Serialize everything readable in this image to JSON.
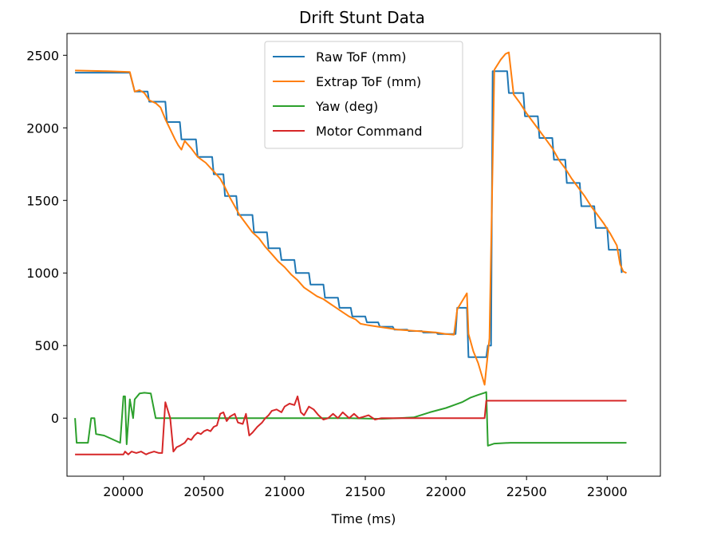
{
  "chart_data": {
    "type": "line",
    "title": "Drift Stunt Data",
    "xlabel": "Time (ms)",
    "ylabel": "",
    "xlim": [
      19650,
      23330
    ],
    "ylim": [
      -400,
      2650
    ],
    "xticks": [
      20000,
      20500,
      21000,
      21500,
      22000,
      22500,
      23000
    ],
    "xtick_labels": [
      "20000",
      "20500",
      "21000",
      "21500",
      "22000",
      "22500",
      "23000"
    ],
    "yticks": [
      0,
      500,
      1000,
      1500,
      2000,
      2500
    ],
    "ytick_labels": [
      "0",
      "500",
      "1000",
      "1500",
      "2000",
      "2500"
    ],
    "grid": false,
    "legend_position": "top-center",
    "series": [
      {
        "name": "Raw ToF (mm)",
        "color": "#1f77b4",
        "points": [
          [
            19700,
            2380
          ],
          [
            20040,
            2380
          ],
          [
            20070,
            2250
          ],
          [
            20150,
            2250
          ],
          [
            20160,
            2180
          ],
          [
            20260,
            2180
          ],
          [
            20270,
            2040
          ],
          [
            20350,
            2040
          ],
          [
            20360,
            1920
          ],
          [
            20450,
            1920
          ],
          [
            20460,
            1800
          ],
          [
            20550,
            1800
          ],
          [
            20560,
            1680
          ],
          [
            20620,
            1680
          ],
          [
            20630,
            1530
          ],
          [
            20700,
            1530
          ],
          [
            20710,
            1400
          ],
          [
            20800,
            1400
          ],
          [
            20810,
            1280
          ],
          [
            20890,
            1280
          ],
          [
            20900,
            1170
          ],
          [
            20970,
            1170
          ],
          [
            20980,
            1090
          ],
          [
            21060,
            1090
          ],
          [
            21070,
            1000
          ],
          [
            21150,
            1000
          ],
          [
            21160,
            920
          ],
          [
            21240,
            920
          ],
          [
            21250,
            830
          ],
          [
            21330,
            830
          ],
          [
            21340,
            760
          ],
          [
            21410,
            760
          ],
          [
            21420,
            700
          ],
          [
            21500,
            700
          ],
          [
            21510,
            660
          ],
          [
            21580,
            660
          ],
          [
            21590,
            630
          ],
          [
            21670,
            630
          ],
          [
            21680,
            610
          ],
          [
            21760,
            610
          ],
          [
            21770,
            600
          ],
          [
            21850,
            600
          ],
          [
            21860,
            590
          ],
          [
            21940,
            590
          ],
          [
            21950,
            580
          ],
          [
            22060,
            580
          ],
          [
            22070,
            760
          ],
          [
            22130,
            760
          ],
          [
            22140,
            420
          ],
          [
            22250,
            420
          ],
          [
            22260,
            500
          ],
          [
            22280,
            500
          ],
          [
            22290,
            2390
          ],
          [
            22380,
            2390
          ],
          [
            22390,
            2240
          ],
          [
            22480,
            2240
          ],
          [
            22490,
            2080
          ],
          [
            22570,
            2080
          ],
          [
            22580,
            1930
          ],
          [
            22660,
            1930
          ],
          [
            22670,
            1780
          ],
          [
            22740,
            1780
          ],
          [
            22750,
            1620
          ],
          [
            22830,
            1620
          ],
          [
            22840,
            1460
          ],
          [
            22920,
            1460
          ],
          [
            22930,
            1310
          ],
          [
            23000,
            1310
          ],
          [
            23010,
            1160
          ],
          [
            23080,
            1160
          ],
          [
            23090,
            1000
          ]
        ]
      },
      {
        "name": "Extrap ToF (mm)",
        "color": "#ff7f0e",
        "points": [
          [
            19700,
            2395
          ],
          [
            19900,
            2390
          ],
          [
            20040,
            2385
          ],
          [
            20070,
            2250
          ],
          [
            20100,
            2260
          ],
          [
            20130,
            2240
          ],
          [
            20160,
            2190
          ],
          [
            20200,
            2170
          ],
          [
            20230,
            2140
          ],
          [
            20260,
            2060
          ],
          [
            20290,
            1990
          ],
          [
            20320,
            1920
          ],
          [
            20340,
            1880
          ],
          [
            20360,
            1850
          ],
          [
            20380,
            1910
          ],
          [
            20420,
            1860
          ],
          [
            20460,
            1800
          ],
          [
            20510,
            1760
          ],
          [
            20560,
            1700
          ],
          [
            20600,
            1650
          ],
          [
            20630,
            1590
          ],
          [
            20660,
            1520
          ],
          [
            20690,
            1460
          ],
          [
            20720,
            1400
          ],
          [
            20760,
            1340
          ],
          [
            20800,
            1280
          ],
          [
            20840,
            1240
          ],
          [
            20880,
            1180
          ],
          [
            20920,
            1130
          ],
          [
            20960,
            1080
          ],
          [
            21000,
            1040
          ],
          [
            21040,
            990
          ],
          [
            21080,
            950
          ],
          [
            21120,
            900
          ],
          [
            21160,
            870
          ],
          [
            21200,
            840
          ],
          [
            21240,
            820
          ],
          [
            21280,
            790
          ],
          [
            21320,
            760
          ],
          [
            21360,
            730
          ],
          [
            21400,
            700
          ],
          [
            21440,
            680
          ],
          [
            21470,
            650
          ],
          [
            21520,
            640
          ],
          [
            21580,
            630
          ],
          [
            21640,
            620
          ],
          [
            21700,
            610
          ],
          [
            21760,
            605
          ],
          [
            21820,
            600
          ],
          [
            21880,
            595
          ],
          [
            21940,
            590
          ],
          [
            22000,
            580
          ],
          [
            22050,
            575
          ],
          [
            22070,
            750
          ],
          [
            22130,
            860
          ],
          [
            22140,
            580
          ],
          [
            22170,
            460
          ],
          [
            22200,
            380
          ],
          [
            22240,
            230
          ],
          [
            22270,
            550
          ],
          [
            22300,
            2400
          ],
          [
            22340,
            2470
          ],
          [
            22370,
            2510
          ],
          [
            22390,
            2520
          ],
          [
            22420,
            2230
          ],
          [
            22460,
            2170
          ],
          [
            22500,
            2100
          ],
          [
            22540,
            2040
          ],
          [
            22580,
            1980
          ],
          [
            22620,
            1920
          ],
          [
            22660,
            1860
          ],
          [
            22700,
            1780
          ],
          [
            22740,
            1720
          ],
          [
            22780,
            1650
          ],
          [
            22820,
            1590
          ],
          [
            22860,
            1530
          ],
          [
            22900,
            1460
          ],
          [
            22940,
            1400
          ],
          [
            22980,
            1340
          ],
          [
            23020,
            1270
          ],
          [
            23060,
            1190
          ],
          [
            23080,
            1060
          ],
          [
            23100,
            1010
          ],
          [
            23120,
            1000
          ]
        ]
      },
      {
        "name": "Yaw (deg)",
        "color": "#2ca02c",
        "points": [
          [
            19700,
            0
          ],
          [
            19710,
            -170
          ],
          [
            19780,
            -170
          ],
          [
            19800,
            0
          ],
          [
            19820,
            0
          ],
          [
            19830,
            -110
          ],
          [
            19880,
            -120
          ],
          [
            19980,
            -170
          ],
          [
            20000,
            150
          ],
          [
            20010,
            150
          ],
          [
            20020,
            -180
          ],
          [
            20040,
            130
          ],
          [
            20060,
            0
          ],
          [
            20070,
            130
          ],
          [
            20100,
            170
          ],
          [
            20130,
            175
          ],
          [
            20170,
            170
          ],
          [
            20200,
            0
          ],
          [
            20260,
            0
          ],
          [
            20400,
            0
          ],
          [
            20600,
            0
          ],
          [
            20800,
            0
          ],
          [
            21000,
            0
          ],
          [
            21200,
            0
          ],
          [
            21400,
            0
          ],
          [
            21600,
            -5
          ],
          [
            21700,
            0
          ],
          [
            21800,
            5
          ],
          [
            21900,
            40
          ],
          [
            22000,
            70
          ],
          [
            22100,
            110
          ],
          [
            22150,
            140
          ],
          [
            22200,
            160
          ],
          [
            22240,
            175
          ],
          [
            22250,
            180
          ],
          [
            22260,
            -190
          ],
          [
            22300,
            -175
          ],
          [
            22400,
            -170
          ],
          [
            22600,
            -170
          ],
          [
            22800,
            -170
          ],
          [
            23000,
            -170
          ],
          [
            23120,
            -170
          ]
        ]
      },
      {
        "name": "Motor Command",
        "color": "#d62728",
        "points": [
          [
            19700,
            -250
          ],
          [
            19800,
            -250
          ],
          [
            19900,
            -250
          ],
          [
            20000,
            -250
          ],
          [
            20010,
            -230
          ],
          [
            20030,
            -250
          ],
          [
            20050,
            -230
          ],
          [
            20080,
            -240
          ],
          [
            20110,
            -230
          ],
          [
            20140,
            -250
          ],
          [
            20160,
            -240
          ],
          [
            20190,
            -230
          ],
          [
            20220,
            -240
          ],
          [
            20240,
            -240
          ],
          [
            20260,
            110
          ],
          [
            20290,
            0
          ],
          [
            20310,
            -230
          ],
          [
            20330,
            -200
          ],
          [
            20350,
            -190
          ],
          [
            20380,
            -170
          ],
          [
            20400,
            -140
          ],
          [
            20420,
            -150
          ],
          [
            20440,
            -120
          ],
          [
            20460,
            -100
          ],
          [
            20480,
            -110
          ],
          [
            20500,
            -90
          ],
          [
            20520,
            -80
          ],
          [
            20540,
            -90
          ],
          [
            20560,
            -60
          ],
          [
            20580,
            -50
          ],
          [
            20600,
            30
          ],
          [
            20620,
            40
          ],
          [
            20640,
            -20
          ],
          [
            20660,
            10
          ],
          [
            20690,
            30
          ],
          [
            20710,
            -30
          ],
          [
            20740,
            -40
          ],
          [
            20760,
            30
          ],
          [
            20780,
            -120
          ],
          [
            20800,
            -100
          ],
          [
            20830,
            -60
          ],
          [
            20860,
            -30
          ],
          [
            20880,
            0
          ],
          [
            20900,
            20
          ],
          [
            20920,
            50
          ],
          [
            20950,
            60
          ],
          [
            20980,
            40
          ],
          [
            21000,
            80
          ],
          [
            21030,
            100
          ],
          [
            21060,
            90
          ],
          [
            21080,
            150
          ],
          [
            21100,
            40
          ],
          [
            21120,
            20
          ],
          [
            21150,
            80
          ],
          [
            21180,
            60
          ],
          [
            21210,
            20
          ],
          [
            21240,
            -10
          ],
          [
            21270,
            0
          ],
          [
            21300,
            30
          ],
          [
            21330,
            0
          ],
          [
            21360,
            40
          ],
          [
            21380,
            20
          ],
          [
            21400,
            0
          ],
          [
            21430,
            30
          ],
          [
            21460,
            0
          ],
          [
            21490,
            10
          ],
          [
            21520,
            20
          ],
          [
            21560,
            -10
          ],
          [
            21600,
            0
          ],
          [
            21700,
            0
          ],
          [
            21800,
            0
          ],
          [
            21900,
            0
          ],
          [
            22000,
            0
          ],
          [
            22100,
            0
          ],
          [
            22240,
            0
          ],
          [
            22250,
            120
          ],
          [
            22400,
            120
          ],
          [
            22600,
            120
          ],
          [
            22800,
            120
          ],
          [
            23000,
            120
          ],
          [
            23120,
            120
          ]
        ]
      }
    ]
  }
}
